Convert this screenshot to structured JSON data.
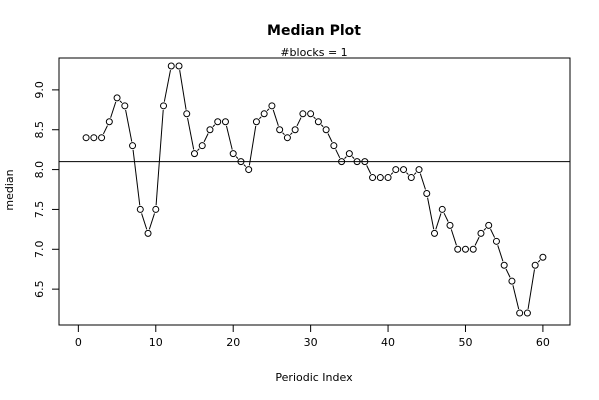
{
  "chart_data": {
    "type": "line",
    "title": "Median Plot",
    "subtitle": "#blocks =  1",
    "xlabel": "Periodic Index",
    "ylabel": "median",
    "xlim": [
      -2.5,
      63.5
    ],
    "ylim": [
      6.05,
      9.4
    ],
    "x_ticks": [
      0,
      10,
      20,
      30,
      40,
      50,
      60
    ],
    "y_ticks": [
      6.5,
      7.0,
      7.5,
      8.0,
      8.5,
      9.0
    ],
    "y_tick_labels": [
      "6.5",
      "7.0",
      "7.5",
      "8.0",
      "8.5",
      "9.0"
    ],
    "reference_line": 8.1,
    "grid": false,
    "series": [
      {
        "x": [
          1,
          2,
          3,
          4,
          5,
          6,
          7,
          8,
          9,
          10,
          11,
          12,
          13,
          14,
          15,
          16,
          17,
          18,
          19,
          20,
          21,
          22,
          23,
          24,
          25,
          26,
          27,
          28,
          29,
          30,
          31,
          32,
          33,
          34,
          35,
          36,
          37,
          38,
          39,
          40,
          41,
          42,
          43,
          44,
          45,
          46,
          47,
          48,
          49,
          50,
          51,
          52,
          53,
          54,
          55,
          56,
          57,
          58,
          59,
          60
        ],
        "values": [
          8.4,
          8.4,
          8.4,
          8.6,
          8.9,
          8.8,
          8.3,
          7.5,
          7.2,
          7.5,
          8.8,
          9.3,
          9.3,
          8.7,
          8.2,
          8.3,
          8.5,
          8.6,
          8.6,
          8.2,
          8.1,
          8.0,
          8.6,
          8.7,
          8.8,
          8.5,
          8.4,
          8.5,
          8.7,
          8.7,
          8.6,
          8.5,
          8.3,
          8.1,
          8.2,
          8.1,
          8.1,
          7.9,
          7.9,
          7.9,
          8.0,
          8.0,
          7.9,
          8.0,
          7.7,
          7.2,
          7.5,
          7.3,
          7.0,
          7.0,
          7.0,
          7.2,
          7.3,
          7.1,
          6.8,
          6.6,
          6.2,
          6.2,
          6.8,
          6.9
        ]
      }
    ]
  }
}
